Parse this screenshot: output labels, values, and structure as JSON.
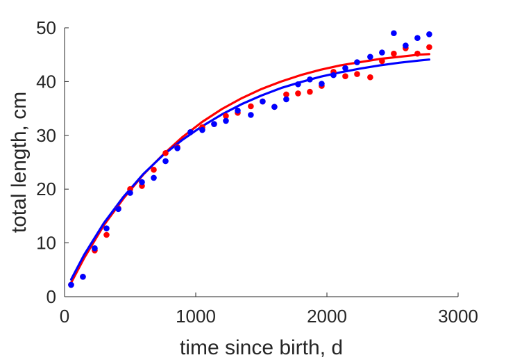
{
  "chart_data": {
    "type": "scatter",
    "xlabel": "time since birth, d",
    "ylabel": "total length, cm",
    "xlim": [
      0,
      3000
    ],
    "ylim": [
      0,
      50
    ],
    "xticks": [
      "0",
      "1000",
      "2000",
      "3000"
    ],
    "yticks": [
      "0",
      "10",
      "20",
      "30",
      "40",
      "50"
    ],
    "grid": false,
    "series": [
      {
        "kind": "points",
        "color": "#ff0000",
        "x": [
          50,
          140,
          230,
          320,
          410,
          500,
          590,
          680,
          770,
          860,
          960,
          1050,
          1140,
          1230,
          1320,
          1420,
          1510,
          1600,
          1690,
          1780,
          1870,
          1960,
          2050,
          2140,
          2230,
          2330,
          2420,
          2510,
          2600,
          2690,
          2780
        ],
        "y": [
          2.2,
          3.7,
          8.6,
          11.5,
          16.4,
          20.0,
          20.6,
          23.6,
          26.7,
          27.8,
          30.6,
          31.5,
          32.1,
          33.6,
          34.2,
          35.4,
          36.3,
          35.3,
          37.6,
          37.8,
          38.1,
          39.2,
          41.8,
          41.0,
          41.4,
          40.8,
          43.8,
          45.2,
          46.2,
          45.2,
          46.4
        ]
      },
      {
        "kind": "points",
        "color": "#0000ff",
        "x": [
          50,
          140,
          230,
          320,
          410,
          500,
          590,
          680,
          770,
          860,
          960,
          1050,
          1140,
          1230,
          1320,
          1420,
          1510,
          1600,
          1690,
          1780,
          1870,
          1960,
          2050,
          2140,
          2230,
          2330,
          2420,
          2510,
          2600,
          2690,
          2780
        ],
        "y": [
          2.2,
          3.7,
          9.0,
          12.7,
          16.3,
          19.3,
          21.3,
          22.1,
          25.2,
          27.6,
          30.6,
          31.0,
          32.1,
          32.7,
          34.6,
          33.8,
          36.3,
          35.3,
          36.7,
          39.5,
          40.4,
          39.6,
          41.2,
          42.5,
          43.6,
          44.6,
          45.4,
          49.0,
          46.7,
          48.1,
          48.8
        ]
      },
      {
        "kind": "curve",
        "color": "#ff0000",
        "x": [
          50,
          150,
          300,
          450,
          600,
          750,
          900,
          1050,
          1200,
          1350,
          1500,
          1650,
          1800,
          1950,
          2100,
          2250,
          2400,
          2550,
          2700,
          2780
        ],
        "y": [
          2.6,
          7.2,
          13.3,
          18.3,
          22.7,
          26.4,
          29.7,
          32.5,
          34.9,
          36.9,
          38.6,
          40.0,
          41.2,
          42.2,
          43.0,
          43.6,
          44.2,
          44.6,
          45.0,
          45.1
        ]
      },
      {
        "kind": "curve",
        "color": "#0000ff",
        "x": [
          50,
          150,
          300,
          450,
          600,
          750,
          900,
          1050,
          1200,
          1350,
          1500,
          1650,
          1800,
          1950,
          2100,
          2250,
          2400,
          2550,
          2700,
          2780
        ],
        "y": [
          3.2,
          7.8,
          13.7,
          18.6,
          22.8,
          26.3,
          29.2,
          31.7,
          33.9,
          35.8,
          37.4,
          38.8,
          39.9,
          40.9,
          41.7,
          42.4,
          43.0,
          43.5,
          43.9,
          44.1
        ]
      }
    ]
  }
}
